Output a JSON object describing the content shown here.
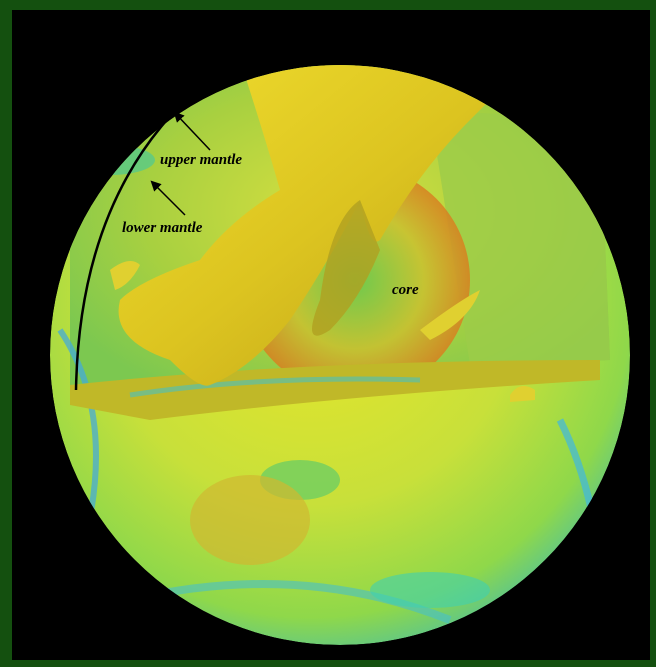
{
  "annotations": [
    {
      "text": "upper mantle"
    },
    {
      "text": "lower mantle"
    },
    {
      "text": "core"
    }
  ]
}
